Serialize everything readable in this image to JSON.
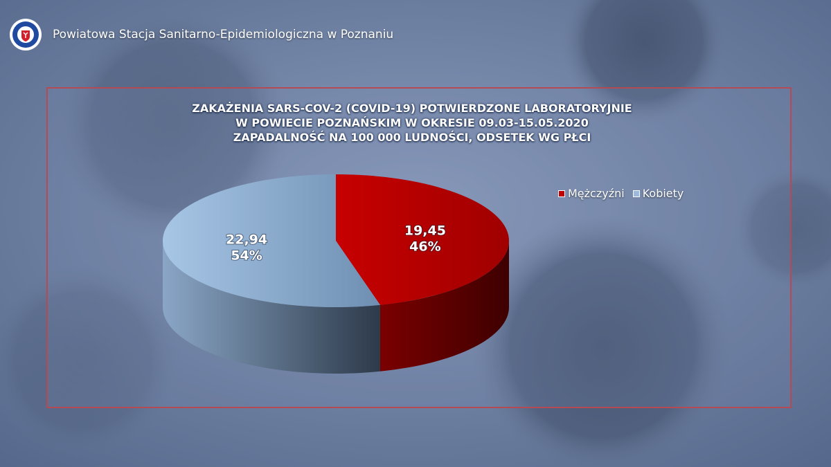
{
  "header": {
    "org_name": "Powiatowa Stacja Sanitarno-Epidemiologiczna w Poznaniu",
    "logo_icon": "sanepid-seal-icon"
  },
  "chart_data": {
    "type": "pie",
    "title_lines": [
      "ZAKAŻENIA SARS-COV-2 (COVID-19) POTWIERDZONE LABORATORYJNIE",
      "W POWIECIE POZNAŃSKIM W OKRESIE 09.03-15.05.2020",
      "ZAPADALNOŚĆ NA 100 000 LUDNOŚCI, ODSETEK WG PŁCI"
    ],
    "slices": [
      {
        "name": "Mężczyźni",
        "value": 19.45,
        "value_label": "19,45",
        "percent_label": "46%",
        "color": "#c00000"
      },
      {
        "name": "Kobiety",
        "value": 22.94,
        "value_label": "22,94",
        "percent_label": "54%",
        "color": "#9ab9dc"
      }
    ],
    "legend_position": "top-right",
    "style": "3d"
  },
  "colors": {
    "panel_border": "#b54a55",
    "background": "#66799a"
  }
}
